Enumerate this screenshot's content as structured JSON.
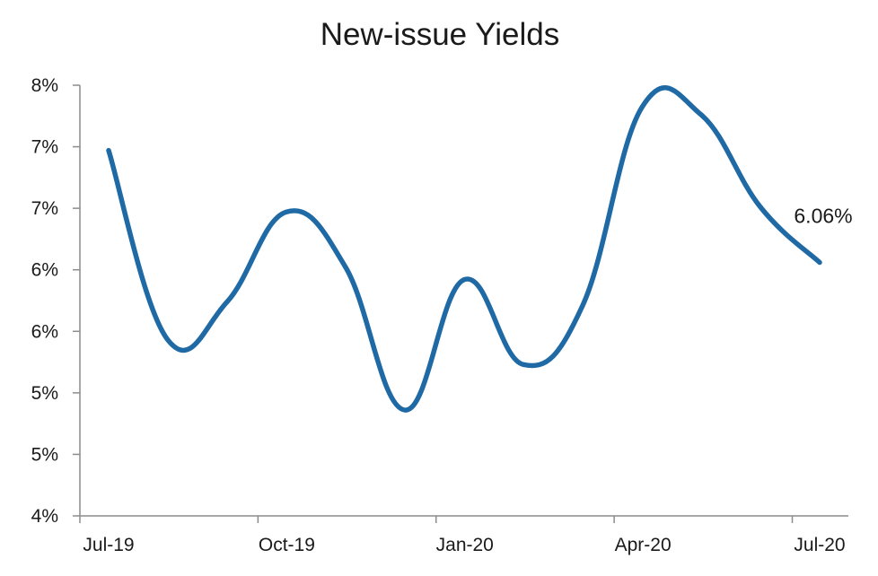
{
  "chart_data": {
    "type": "line",
    "title": "New-issue Yields",
    "xlabel": "",
    "ylabel": "",
    "grid": false,
    "legend": "none",
    "x": [
      "2019-07",
      "2019-08",
      "2019-09",
      "2019-10",
      "2019-11",
      "2019-12",
      "2020-01",
      "2020-02",
      "2020-03",
      "2020-04",
      "2020-05",
      "2020-06",
      "2020-07"
    ],
    "x_tick_labels": [
      "Jul-19",
      "Oct-19",
      "Jan-20",
      "Apr-20",
      "Jul-20"
    ],
    "y_tick_labels": [
      "4%",
      "5%",
      "5%",
      "6%",
      "6%",
      "7%",
      "7%",
      "8%"
    ],
    "ylim": [
      4.0,
      7.5
    ],
    "series": [
      {
        "values": [
          6.97,
          5.43,
          5.74,
          6.47,
          6.02,
          4.86,
          5.92,
          5.23,
          5.71,
          7.32,
          7.26,
          6.51,
          6.06
        ],
        "color": "#1f6aa5"
      }
    ],
    "annotations": [
      {
        "text": "6.06%",
        "series_index": 0,
        "point_index": 12
      }
    ]
  }
}
